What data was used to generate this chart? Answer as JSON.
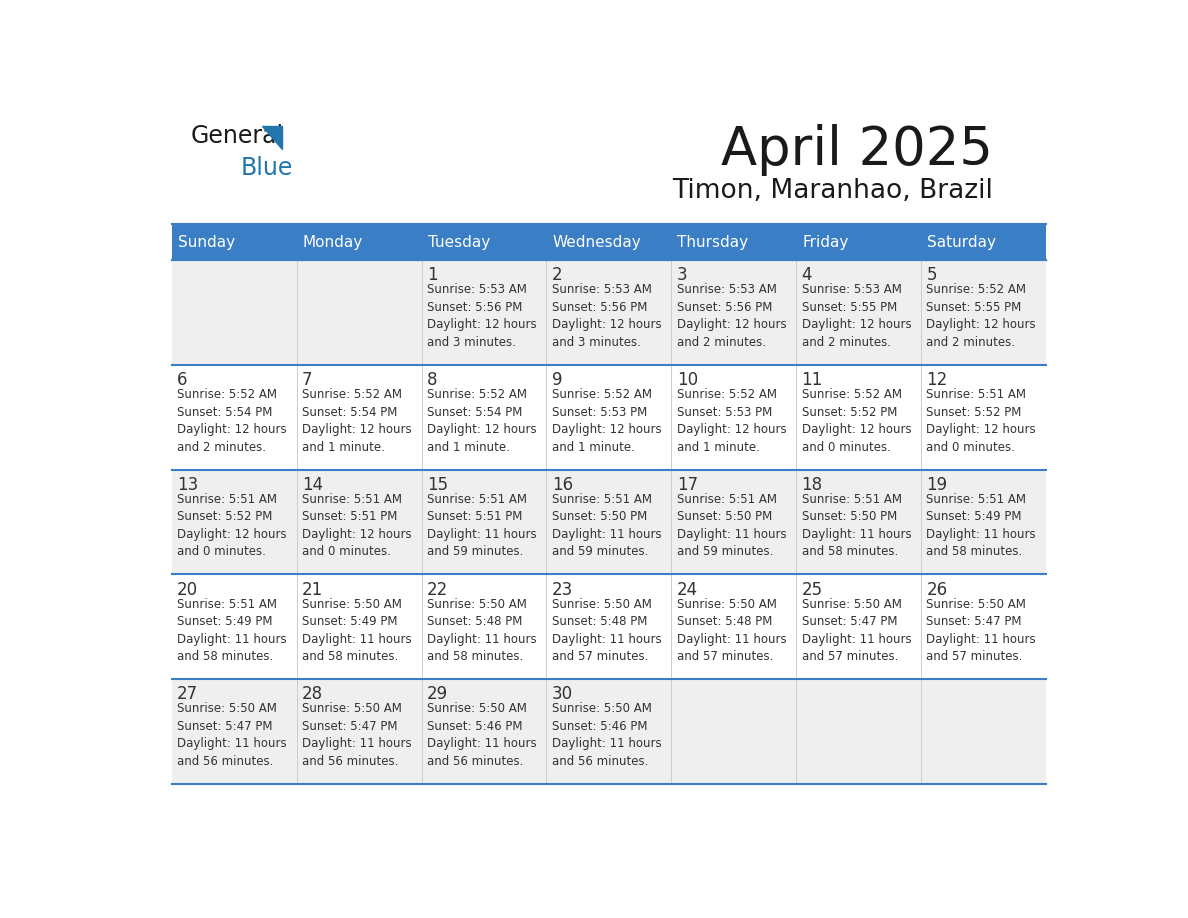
{
  "title": "April 2025",
  "subtitle": "Timon, Maranhao, Brazil",
  "header_bg": "#3A7EC6",
  "header_text_color": "#FFFFFF",
  "cell_bg_row0": "#EFEFEF",
  "cell_bg_row1": "#FFFFFF",
  "cell_bg_row2": "#EFEFEF",
  "cell_bg_row3": "#FFFFFF",
  "cell_bg_row4": "#EFEFEF",
  "grid_line_color": "#3A7EC6",
  "text_color": "#333333",
  "days_of_week": [
    "Sunday",
    "Monday",
    "Tuesday",
    "Wednesday",
    "Thursday",
    "Friday",
    "Saturday"
  ],
  "logo_general_color": "#1a1a1a",
  "logo_blue_color": "#2176AE",
  "calendar_data": [
    [
      {
        "day": "",
        "sunrise": "",
        "sunset": "",
        "daylight_h": "",
        "daylight_m": ""
      },
      {
        "day": "",
        "sunrise": "",
        "sunset": "",
        "daylight_h": "",
        "daylight_m": ""
      },
      {
        "day": "1",
        "sunrise": "5:53 AM",
        "sunset": "5:56 PM",
        "daylight_h": "12",
        "daylight_m": "3"
      },
      {
        "day": "2",
        "sunrise": "5:53 AM",
        "sunset": "5:56 PM",
        "daylight_h": "12",
        "daylight_m": "3"
      },
      {
        "day": "3",
        "sunrise": "5:53 AM",
        "sunset": "5:56 PM",
        "daylight_h": "12",
        "daylight_m": "2"
      },
      {
        "day": "4",
        "sunrise": "5:53 AM",
        "sunset": "5:55 PM",
        "daylight_h": "12",
        "daylight_m": "2"
      },
      {
        "day": "5",
        "sunrise": "5:52 AM",
        "sunset": "5:55 PM",
        "daylight_h": "12",
        "daylight_m": "2"
      }
    ],
    [
      {
        "day": "6",
        "sunrise": "5:52 AM",
        "sunset": "5:54 PM",
        "daylight_h": "12",
        "daylight_m": "2"
      },
      {
        "day": "7",
        "sunrise": "5:52 AM",
        "sunset": "5:54 PM",
        "daylight_h": "12",
        "daylight_m": "1"
      },
      {
        "day": "8",
        "sunrise": "5:52 AM",
        "sunset": "5:54 PM",
        "daylight_h": "12",
        "daylight_m": "1"
      },
      {
        "day": "9",
        "sunrise": "5:52 AM",
        "sunset": "5:53 PM",
        "daylight_h": "12",
        "daylight_m": "1"
      },
      {
        "day": "10",
        "sunrise": "5:52 AM",
        "sunset": "5:53 PM",
        "daylight_h": "12",
        "daylight_m": "1"
      },
      {
        "day": "11",
        "sunrise": "5:52 AM",
        "sunset": "5:52 PM",
        "daylight_h": "12",
        "daylight_m": "0"
      },
      {
        "day": "12",
        "sunrise": "5:51 AM",
        "sunset": "5:52 PM",
        "daylight_h": "12",
        "daylight_m": "0"
      }
    ],
    [
      {
        "day": "13",
        "sunrise": "5:51 AM",
        "sunset": "5:52 PM",
        "daylight_h": "12",
        "daylight_m": "0"
      },
      {
        "day": "14",
        "sunrise": "5:51 AM",
        "sunset": "5:51 PM",
        "daylight_h": "12",
        "daylight_m": "0"
      },
      {
        "day": "15",
        "sunrise": "5:51 AM",
        "sunset": "5:51 PM",
        "daylight_h": "11",
        "daylight_m": "59"
      },
      {
        "day": "16",
        "sunrise": "5:51 AM",
        "sunset": "5:50 PM",
        "daylight_h": "11",
        "daylight_m": "59"
      },
      {
        "day": "17",
        "sunrise": "5:51 AM",
        "sunset": "5:50 PM",
        "daylight_h": "11",
        "daylight_m": "59"
      },
      {
        "day": "18",
        "sunrise": "5:51 AM",
        "sunset": "5:50 PM",
        "daylight_h": "11",
        "daylight_m": "58"
      },
      {
        "day": "19",
        "sunrise": "5:51 AM",
        "sunset": "5:49 PM",
        "daylight_h": "11",
        "daylight_m": "58"
      }
    ],
    [
      {
        "day": "20",
        "sunrise": "5:51 AM",
        "sunset": "5:49 PM",
        "daylight_h": "11",
        "daylight_m": "58"
      },
      {
        "day": "21",
        "sunrise": "5:50 AM",
        "sunset": "5:49 PM",
        "daylight_h": "11",
        "daylight_m": "58"
      },
      {
        "day": "22",
        "sunrise": "5:50 AM",
        "sunset": "5:48 PM",
        "daylight_h": "11",
        "daylight_m": "58"
      },
      {
        "day": "23",
        "sunrise": "5:50 AM",
        "sunset": "5:48 PM",
        "daylight_h": "11",
        "daylight_m": "57"
      },
      {
        "day": "24",
        "sunrise": "5:50 AM",
        "sunset": "5:48 PM",
        "daylight_h": "11",
        "daylight_m": "57"
      },
      {
        "day": "25",
        "sunrise": "5:50 AM",
        "sunset": "5:47 PM",
        "daylight_h": "11",
        "daylight_m": "57"
      },
      {
        "day": "26",
        "sunrise": "5:50 AM",
        "sunset": "5:47 PM",
        "daylight_h": "11",
        "daylight_m": "57"
      }
    ],
    [
      {
        "day": "27",
        "sunrise": "5:50 AM",
        "sunset": "5:47 PM",
        "daylight_h": "11",
        "daylight_m": "56"
      },
      {
        "day": "28",
        "sunrise": "5:50 AM",
        "sunset": "5:47 PM",
        "daylight_h": "11",
        "daylight_m": "56"
      },
      {
        "day": "29",
        "sunrise": "5:50 AM",
        "sunset": "5:46 PM",
        "daylight_h": "11",
        "daylight_m": "56"
      },
      {
        "day": "30",
        "sunrise": "5:50 AM",
        "sunset": "5:46 PM",
        "daylight_h": "11",
        "daylight_m": "56"
      },
      {
        "day": "",
        "sunrise": "",
        "sunset": "",
        "daylight_h": "",
        "daylight_m": ""
      },
      {
        "day": "",
        "sunrise": "",
        "sunset": "",
        "daylight_h": "",
        "daylight_m": ""
      },
      {
        "day": "",
        "sunrise": "",
        "sunset": "",
        "daylight_h": "",
        "daylight_m": ""
      }
    ]
  ]
}
